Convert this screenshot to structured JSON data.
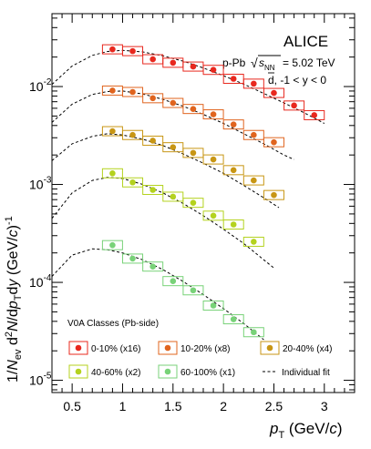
{
  "chart_data": {
    "type": "scatter",
    "title": "ALICE",
    "system_label": "p-Pb",
    "energy_label": "= 5.02 TeV",
    "particle_label": "d, -1 < y < 0",
    "x_tick_labels": [
      "0.5",
      "1",
      "1.5",
      "2",
      "2.5",
      "3"
    ],
    "xlim": [
      0.3,
      3.3
    ],
    "ylim": [
      7.5e-06,
      0.0555
    ],
    "y_scale": "log",
    "legend_title": "V0A Classes (Pb-side)",
    "legend_placement": "bottom",
    "fit_label": "Individual fit",
    "series": [
      {
        "name": "0-10% (x16)",
        "color": "#e8281e",
        "x": [
          0.9,
          1.1,
          1.3,
          1.5,
          1.7,
          1.9,
          2.1,
          2.3,
          2.5,
          2.7,
          2.9
        ],
        "y": [
          0.024,
          0.023,
          0.019,
          0.0175,
          0.016,
          0.0148,
          0.012,
          0.0107,
          0.0086,
          0.0064,
          0.0051
        ],
        "fit": {
          "x": [
            0.3,
            0.5,
            0.7,
            0.85,
            1.0,
            1.2,
            1.4,
            1.6,
            1.8,
            2.0,
            2.2,
            2.4,
            2.6,
            2.8,
            3.0
          ],
          "y": [
            0.0105,
            0.0162,
            0.0208,
            0.0228,
            0.0234,
            0.0226,
            0.0206,
            0.0182,
            0.0155,
            0.0129,
            0.0106,
            0.0085,
            0.0068,
            0.0054,
            0.0042
          ]
        }
      },
      {
        "name": "10-20% (x8)",
        "color": "#e0641e",
        "x": [
          0.9,
          1.1,
          1.3,
          1.5,
          1.7,
          1.9,
          2.1,
          2.3,
          2.5
        ],
        "y": [
          0.0091,
          0.0088,
          0.0076,
          0.0068,
          0.0059,
          0.0052,
          0.0041,
          0.0032,
          0.0027
        ],
        "fit": {
          "x": [
            0.3,
            0.5,
            0.7,
            0.85,
            1.0,
            1.2,
            1.4,
            1.6,
            1.8,
            2.0,
            2.2,
            2.4,
            2.6,
            2.7
          ],
          "y": [
            0.0043,
            0.0066,
            0.0083,
            0.0089,
            0.009,
            0.0084,
            0.0074,
            0.0063,
            0.0052,
            0.0042,
            0.0033,
            0.0026,
            0.002,
            0.0018
          ]
        }
      },
      {
        "name": "20-40% (x4)",
        "color": "#c89614",
        "x": [
          0.9,
          1.1,
          1.3,
          1.5,
          1.7,
          1.9,
          2.1,
          2.3,
          2.5
        ],
        "y": [
          0.0035,
          0.0032,
          0.0028,
          0.0024,
          0.0021,
          0.0018,
          0.0014,
          0.0011,
          0.00078
        ],
        "fit": {
          "x": [
            0.3,
            0.5,
            0.7,
            0.85,
            1.0,
            1.2,
            1.4,
            1.6,
            1.8,
            2.0,
            2.2,
            2.4,
            2.55
          ],
          "y": [
            0.00175,
            0.0026,
            0.0031,
            0.0033,
            0.0032,
            0.0029,
            0.0025,
            0.00205,
            0.00165,
            0.0013,
            0.00098,
            0.00073,
            0.00058
          ]
        }
      },
      {
        "name": "40-60% (x2)",
        "color": "#b4d21e",
        "x": [
          0.9,
          1.1,
          1.3,
          1.5,
          1.7,
          1.9,
          2.1,
          2.3
        ],
        "y": [
          0.0013,
          0.00105,
          0.00088,
          0.00075,
          0.00065,
          0.00048,
          0.00039,
          0.00026
        ],
        "fit": {
          "x": [
            0.3,
            0.5,
            0.7,
            0.85,
            1.0,
            1.2,
            1.4,
            1.6,
            1.8,
            2.0,
            2.2,
            2.4,
            2.5
          ],
          "y": [
            0.00045,
            0.00082,
            0.0011,
            0.00118,
            0.00115,
            0.001,
            0.00082,
            0.00064,
            0.00048,
            0.00035,
            0.00025,
            0.00017,
            0.00014
          ]
        }
      },
      {
        "name": "60-100% (x1)",
        "color": "#78d278",
        "x": [
          0.9,
          1.1,
          1.3,
          1.5,
          1.7,
          1.9,
          2.1,
          2.3
        ],
        "y": [
          0.00024,
          0.000175,
          0.000145,
          0.000103,
          8.3e-05,
          5.8e-05,
          4.2e-05,
          3.1e-05
        ],
        "fit": {
          "x": [
            0.3,
            0.5,
            0.7,
            0.85,
            1.0,
            1.2,
            1.4,
            1.6,
            1.8,
            2.0,
            2.2,
            2.4
          ],
          "y": [
            0.000115,
            0.00019,
            0.00022,
            0.000215,
            0.0002,
            0.00017,
            0.000135,
            0.000102,
            7.5e-05,
            5.4e-05,
            3.8e-05,
            2.6e-05
          ]
        }
      }
    ]
  }
}
